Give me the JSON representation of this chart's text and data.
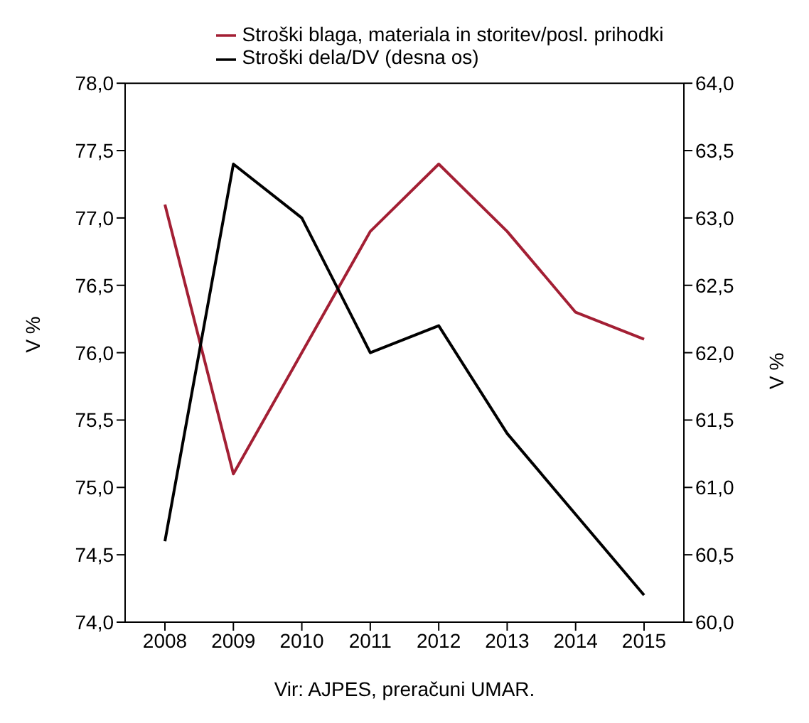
{
  "chart_data": {
    "type": "line",
    "categories": [
      "2008",
      "2009",
      "2010",
      "2011",
      "2012",
      "2013",
      "2014",
      "2015"
    ],
    "series": [
      {
        "name": "Stroški blaga, materiala in storitev/posl. prihodki",
        "color": "#a31f34",
        "values": [
          77.1,
          75.1,
          76.0,
          76.9,
          77.4,
          76.9,
          76.3,
          76.1
        ]
      },
      {
        "name": "Stroški dela/DV (desna os)",
        "color": "#000000",
        "axis": "y2",
        "values": [
          60.6,
          63.4,
          63.0,
          62.0,
          62.2,
          61.4,
          60.8,
          60.2
        ]
      }
    ],
    "ylabel": "V %",
    "y2label": "V %",
    "ylim": [
      74,
      78
    ],
    "yticks": [
      {
        "value": 74,
        "label": "74,0"
      },
      {
        "value": 74.5,
        "label": "74,5"
      },
      {
        "value": 75,
        "label": "75,0"
      },
      {
        "value": 75.5,
        "label": "75,5"
      },
      {
        "value": 76,
        "label": "76,0"
      },
      {
        "value": 76.5,
        "label": "76,5"
      },
      {
        "value": 77,
        "label": "77,0"
      },
      {
        "value": 77.5,
        "label": "77,5"
      },
      {
        "value": 78,
        "label": "78,0"
      }
    ],
    "y2lim": [
      60,
      64
    ],
    "y2ticks": [
      {
        "value": 60,
        "label": "60,0"
      },
      {
        "value": 60.5,
        "label": "60,5"
      },
      {
        "value": 61,
        "label": "61,0"
      },
      {
        "value": 61.5,
        "label": "61,5"
      },
      {
        "value": 62,
        "label": "62,0"
      },
      {
        "value": 62.5,
        "label": "62,5"
      },
      {
        "value": 63,
        "label": "63,0"
      },
      {
        "value": 63.5,
        "label": "63,5"
      },
      {
        "value": 64,
        "label": "64,0"
      }
    ],
    "legend": "top",
    "marker": "none",
    "line_style": "solid",
    "annotations": [
      "Vir: AJPES, preračuni UMAR."
    ]
  }
}
